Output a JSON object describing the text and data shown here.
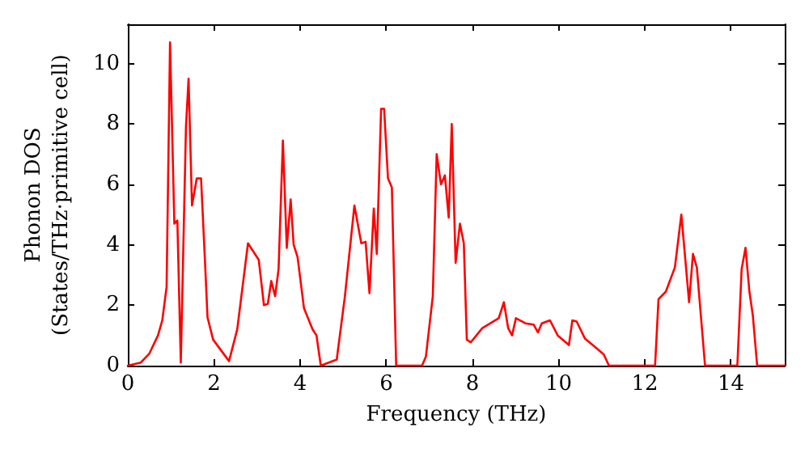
{
  "chart_data": {
    "type": "line",
    "xlabel": "Frequency (THz)",
    "ylabel": "Phonon DOS\n(States/THz·primitive cell)",
    "xlim": [
      0,
      15.25
    ],
    "xticks": [
      0,
      2,
      4,
      6,
      8,
      10,
      12,
      14
    ],
    "ylim": [
      0,
      11.3
    ],
    "yticks": [
      0,
      2,
      4,
      6,
      8,
      10
    ],
    "marker": "none",
    "line_style": "solid",
    "series": [
      {
        "color": "#ff0000",
        "x": [
          0,
          0.3,
          0.5,
          0.7,
          0.8,
          0.9,
          0.98,
          1.08,
          1.15,
          1.23,
          1.35,
          1.41,
          1.49,
          1.6,
          1.7,
          1.79,
          1.85,
          1.98,
          2.35,
          2.54,
          2.79,
          3.04,
          3.16,
          3.25,
          3.33,
          3.42,
          3.5,
          3.6,
          3.69,
          3.78,
          3.85,
          3.94,
          4.09,
          4.29,
          4.38,
          4.48,
          4.85,
          5.04,
          5.26,
          5.42,
          5.52,
          5.61,
          5.71,
          5.78,
          5.88,
          5.95,
          6.04,
          6.13,
          6.23,
          6.83,
          6.92,
          7.08,
          7.17,
          7.27,
          7.36,
          7.45,
          7.52,
          7.61,
          7.71,
          7.8,
          7.87,
          7.96,
          8.23,
          8.61,
          8.73,
          8.83,
          8.92,
          9.01,
          9.23,
          9.42,
          9.52,
          9.61,
          9.8,
          9.98,
          10.24,
          10.32,
          10.42,
          10.61,
          10.86,
          11.05,
          11.17,
          12.24,
          12.32,
          12.49,
          12.7,
          12.85,
          13.03,
          13.12,
          13.21,
          13.4,
          14.15,
          14.25,
          14.34,
          14.43,
          14.51,
          14.61,
          15.25
        ],
        "values": [
          0,
          0.1,
          0.4,
          1.0,
          1.5,
          2.6,
          10.7,
          4.7,
          4.8,
          0.1,
          7.9,
          9.5,
          5.3,
          6.2,
          6.2,
          3.5,
          1.6,
          0.86,
          0.15,
          1.2,
          4.05,
          3.5,
          2.0,
          2.05,
          2.8,
          2.3,
          3.2,
          7.45,
          3.9,
          5.5,
          4.0,
          3.6,
          1.9,
          1.2,
          1.0,
          0,
          0.2,
          2.3,
          5.3,
          4.05,
          4.1,
          2.4,
          5.2,
          3.7,
          8.5,
          8.5,
          6.2,
          5.9,
          0,
          0,
          0.3,
          2.3,
          7.0,
          6.0,
          6.3,
          4.9,
          8.0,
          3.4,
          4.7,
          4.05,
          0.86,
          0.77,
          1.24,
          1.57,
          2.1,
          1.24,
          1.0,
          1.57,
          1.4,
          1.36,
          1.1,
          1.4,
          1.5,
          1.0,
          0.68,
          1.5,
          1.46,
          0.9,
          0.6,
          0.37,
          0,
          0,
          2.2,
          2.45,
          3.25,
          5.0,
          2.1,
          3.7,
          3.25,
          0,
          0,
          3.2,
          3.9,
          2.45,
          1.66,
          0,
          0
        ]
      }
    ]
  }
}
